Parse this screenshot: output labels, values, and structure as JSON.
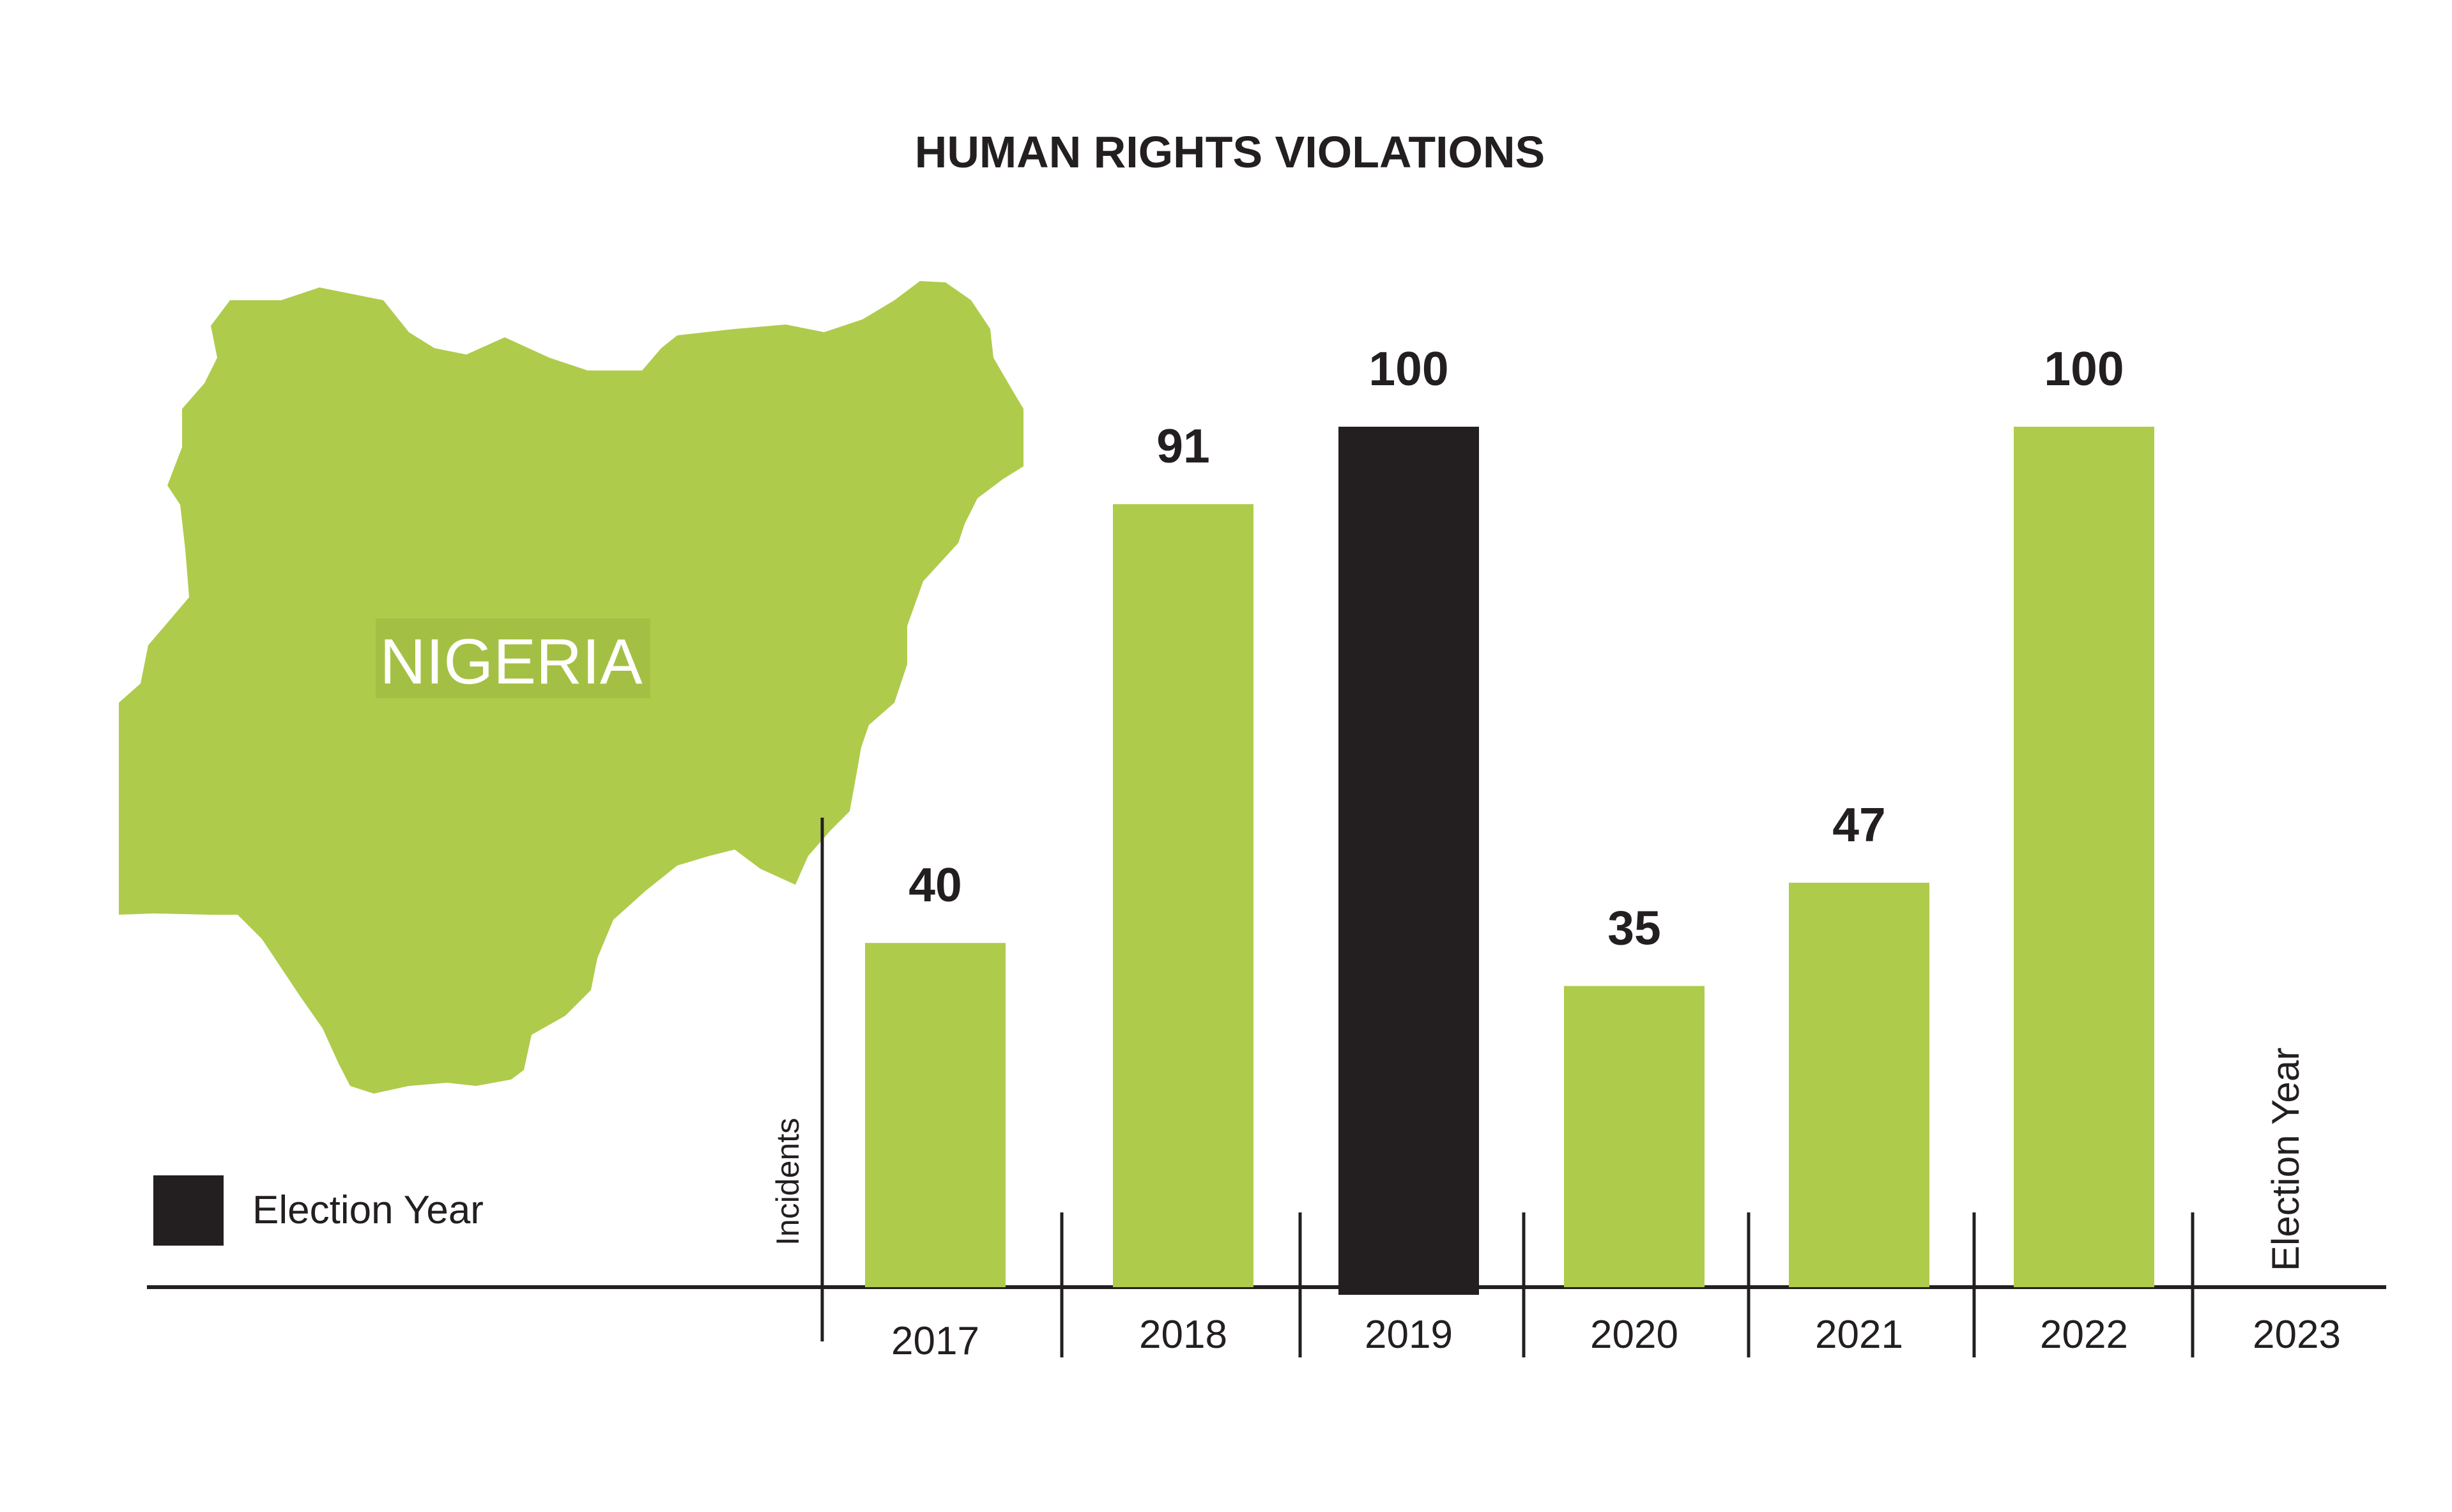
{
  "chart_data": {
    "type": "bar",
    "title": "HUMAN RIGHTS VIOLATIONS",
    "xlabel": "",
    "ylabel": "Incidents",
    "ylim": [
      0,
      100
    ],
    "categories": [
      "2017",
      "2018",
      "2019",
      "2020",
      "2021",
      "2022",
      "2023"
    ],
    "values": [
      40,
      91,
      100,
      35,
      47,
      100,
      null
    ],
    "value_labels": [
      "40",
      "91",
      "100",
      "35",
      "47",
      "100",
      ""
    ],
    "election_years": [
      "2019",
      "2023"
    ],
    "annotation": "Election Year",
    "grid": false,
    "legend": {
      "placement": "bottom-left",
      "items": [
        {
          "label": "Election Year",
          "color": "#231f20"
        }
      ]
    },
    "map_label": "NIGERIA",
    "colors": {
      "bar": "#afcb4b",
      "election_bar": "#231f20",
      "map": "#afcb4b",
      "axis": "#231f20",
      "text": "#231f20"
    }
  }
}
